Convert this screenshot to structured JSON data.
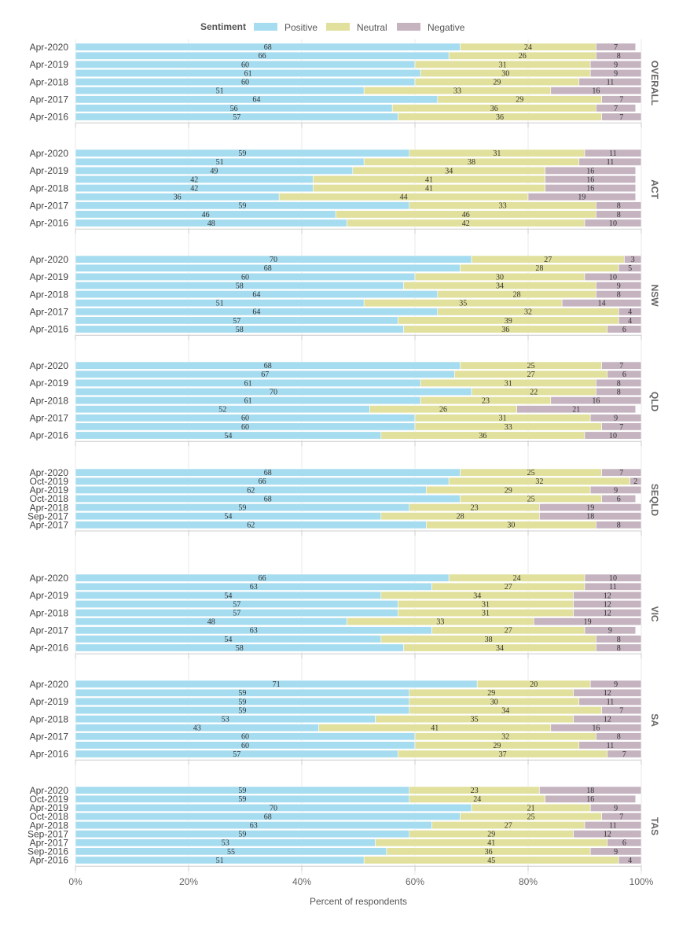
{
  "chart_data": {
    "type": "bar",
    "orientation": "horizontal",
    "stacked": true,
    "legend": {
      "title": "Sentiment",
      "placement": "top-center",
      "items": [
        {
          "name": "Positive",
          "color": "#a6dcef"
        },
        {
          "name": "Neutral",
          "color": "#e1e09c"
        },
        {
          "name": "Negative",
          "color": "#c5b3c0"
        }
      ]
    },
    "xlabel": "Percent of respondents",
    "xlim": [
      0,
      100
    ],
    "x_ticks": [
      "0%",
      "20%",
      "40%",
      "60%",
      "80%",
      "100%"
    ],
    "panels": [
      {
        "name": "OVERALL",
        "rows": [
          {
            "label": "Apr-2020",
            "values": [
              68,
              24,
              7
            ]
          },
          {
            "label": "",
            "values": [
              66,
              26,
              8
            ]
          },
          {
            "label": "Apr-2019",
            "values": [
              60,
              31,
              9
            ]
          },
          {
            "label": "",
            "values": [
              61,
              30,
              9
            ]
          },
          {
            "label": "Apr-2018",
            "values": [
              60,
              29,
              11
            ]
          },
          {
            "label": "",
            "values": [
              51,
              33,
              16
            ]
          },
          {
            "label": "Apr-2017",
            "values": [
              64,
              29,
              7
            ]
          },
          {
            "label": "",
            "values": [
              56,
              36,
              7
            ]
          },
          {
            "label": "Apr-2016",
            "values": [
              57,
              36,
              7
            ]
          }
        ]
      },
      {
        "name": "ACT",
        "rows": [
          {
            "label": "Apr-2020",
            "values": [
              59,
              31,
              11
            ]
          },
          {
            "label": "",
            "values": [
              51,
              38,
              11
            ]
          },
          {
            "label": "Apr-2019",
            "values": [
              49,
              34,
              16
            ]
          },
          {
            "label": "",
            "values": [
              42,
              41,
              16
            ]
          },
          {
            "label": "Apr-2018",
            "values": [
              42,
              41,
              16
            ]
          },
          {
            "label": "",
            "values": [
              36,
              44,
              19
            ]
          },
          {
            "label": "Apr-2017",
            "values": [
              59,
              33,
              8
            ]
          },
          {
            "label": "",
            "values": [
              46,
              46,
              8
            ]
          },
          {
            "label": "Apr-2016",
            "values": [
              48,
              42,
              10
            ]
          }
        ]
      },
      {
        "name": "NSW",
        "rows": [
          {
            "label": "Apr-2020",
            "values": [
              70,
              27,
              3
            ]
          },
          {
            "label": "",
            "values": [
              68,
              28,
              5
            ]
          },
          {
            "label": "Apr-2019",
            "values": [
              60,
              30,
              10
            ]
          },
          {
            "label": "",
            "values": [
              58,
              34,
              9
            ]
          },
          {
            "label": "Apr-2018",
            "values": [
              64,
              28,
              8
            ]
          },
          {
            "label": "",
            "values": [
              51,
              35,
              14
            ]
          },
          {
            "label": "Apr-2017",
            "values": [
              64,
              32,
              4
            ]
          },
          {
            "label": "",
            "values": [
              57,
              39,
              4
            ]
          },
          {
            "label": "Apr-2016",
            "values": [
              58,
              36,
              6
            ]
          }
        ]
      },
      {
        "name": "QLD",
        "rows": [
          {
            "label": "Apr-2020",
            "values": [
              68,
              25,
              7
            ]
          },
          {
            "label": "",
            "values": [
              67,
              27,
              6
            ]
          },
          {
            "label": "Apr-2019",
            "values": [
              61,
              31,
              8
            ]
          },
          {
            "label": "",
            "values": [
              70,
              22,
              8
            ]
          },
          {
            "label": "Apr-2018",
            "values": [
              61,
              23,
              16
            ]
          },
          {
            "label": "",
            "values": [
              52,
              26,
              21
            ]
          },
          {
            "label": "Apr-2017",
            "values": [
              60,
              31,
              9
            ]
          },
          {
            "label": "",
            "values": [
              60,
              33,
              7
            ]
          },
          {
            "label": "Apr-2016",
            "values": [
              54,
              36,
              10
            ]
          }
        ]
      },
      {
        "name": "SEQLD",
        "rows": [
          {
            "label": "Apr-2020",
            "values": [
              68,
              25,
              7
            ]
          },
          {
            "label": "Oct-2019",
            "values": [
              66,
              32,
              2
            ]
          },
          {
            "label": "Apr-2019",
            "values": [
              62,
              29,
              9
            ]
          },
          {
            "label": "Oct-2018",
            "values": [
              68,
              25,
              6
            ]
          },
          {
            "label": "Apr-2018",
            "values": [
              59,
              23,
              19
            ]
          },
          {
            "label": "Sep-2017",
            "values": [
              54,
              28,
              18
            ]
          },
          {
            "label": "Apr-2017",
            "values": [
              62,
              30,
              8
            ]
          }
        ]
      },
      {
        "name": "VIC",
        "rows": [
          {
            "label": "Apr-2020",
            "values": [
              66,
              24,
              10
            ]
          },
          {
            "label": "",
            "values": [
              63,
              27,
              11
            ]
          },
          {
            "label": "Apr-2019",
            "values": [
              54,
              34,
              12
            ]
          },
          {
            "label": "",
            "values": [
              57,
              31,
              12
            ]
          },
          {
            "label": "Apr-2018",
            "values": [
              57,
              31,
              12
            ]
          },
          {
            "label": "",
            "values": [
              48,
              33,
              19
            ]
          },
          {
            "label": "Apr-2017",
            "values": [
              63,
              27,
              9
            ]
          },
          {
            "label": "",
            "values": [
              54,
              38,
              8
            ]
          },
          {
            "label": "Apr-2016",
            "values": [
              58,
              34,
              8
            ]
          }
        ]
      },
      {
        "name": "SA",
        "rows": [
          {
            "label": "Apr-2020",
            "values": [
              71,
              20,
              9
            ]
          },
          {
            "label": "",
            "values": [
              59,
              29,
              12
            ]
          },
          {
            "label": "Apr-2019",
            "values": [
              59,
              30,
              11
            ]
          },
          {
            "label": "",
            "values": [
              59,
              34,
              7
            ]
          },
          {
            "label": "Apr-2018",
            "values": [
              53,
              35,
              12
            ]
          },
          {
            "label": "",
            "values": [
              43,
              41,
              16
            ]
          },
          {
            "label": "Apr-2017",
            "values": [
              60,
              32,
              8
            ]
          },
          {
            "label": "",
            "values": [
              60,
              29,
              11
            ]
          },
          {
            "label": "Apr-2016",
            "values": [
              57,
              37,
              7
            ]
          }
        ]
      },
      {
        "name": "TAS",
        "rows": [
          {
            "label": "Apr-2020",
            "values": [
              59,
              23,
              18
            ]
          },
          {
            "label": "Oct-2019",
            "values": [
              59,
              24,
              16
            ]
          },
          {
            "label": "Apr-2019",
            "values": [
              70,
              21,
              9
            ]
          },
          {
            "label": "Oct-2018",
            "values": [
              68,
              25,
              7
            ]
          },
          {
            "label": "Apr-2018",
            "values": [
              63,
              27,
              11
            ]
          },
          {
            "label": "Sep-2017",
            "values": [
              59,
              29,
              12
            ]
          },
          {
            "label": "Apr-2017",
            "values": [
              53,
              41,
              6
            ]
          },
          {
            "label": "Sep-2016",
            "values": [
              55,
              36,
              9
            ]
          },
          {
            "label": "Apr-2016",
            "values": [
              51,
              45,
              4
            ]
          }
        ]
      }
    ]
  }
}
